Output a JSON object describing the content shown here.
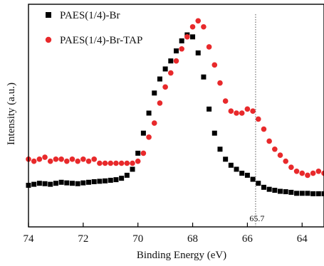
{
  "chart_data": {
    "type": "scatter",
    "title": "",
    "xlabel": "Binding Energy (eV)",
    "ylabel": "Intensity (a.u.)",
    "xlim": [
      74,
      63.2
    ],
    "x_reversed": true,
    "ylim": [
      0,
      1
    ],
    "x_ticks": [
      74,
      72,
      70,
      68,
      66,
      64
    ],
    "x_tick_labels": [
      "74",
      "72",
      "70",
      "68",
      "66",
      "64"
    ],
    "y_ticks_shown": false,
    "grid": false,
    "legend_position": "top-left",
    "annotation": {
      "x": 65.7,
      "label": "65.7",
      "style": "dotted-vertical-line"
    },
    "series": [
      {
        "name": "PAES(1/4)-Br",
        "marker": "square",
        "color": "#000000",
        "x": [
          74.0,
          73.8,
          73.6,
          73.4,
          73.2,
          73.0,
          72.8,
          72.6,
          72.4,
          72.2,
          72.0,
          71.8,
          71.6,
          71.4,
          71.2,
          71.0,
          70.8,
          70.6,
          70.4,
          70.2,
          70.0,
          69.8,
          69.6,
          69.4,
          69.2,
          69.0,
          68.8,
          68.6,
          68.4,
          68.2,
          68.0,
          67.8,
          67.6,
          67.4,
          67.2,
          67.0,
          66.8,
          66.6,
          66.4,
          66.2,
          66.0,
          65.8,
          65.6,
          65.4,
          65.2,
          65.0,
          64.8,
          64.6,
          64.4,
          64.2,
          64.0,
          63.8,
          63.6,
          63.4,
          63.2
        ],
        "y": [
          0.14,
          0.145,
          0.15,
          0.148,
          0.145,
          0.15,
          0.155,
          0.152,
          0.15,
          0.148,
          0.152,
          0.155,
          0.158,
          0.16,
          0.162,
          0.165,
          0.168,
          0.175,
          0.19,
          0.22,
          0.3,
          0.4,
          0.5,
          0.6,
          0.67,
          0.72,
          0.76,
          0.81,
          0.86,
          0.89,
          0.88,
          0.8,
          0.68,
          0.52,
          0.4,
          0.32,
          0.27,
          0.24,
          0.22,
          0.2,
          0.19,
          0.17,
          0.15,
          0.13,
          0.12,
          0.115,
          0.11,
          0.108,
          0.105,
          0.1,
          0.1,
          0.1,
          0.098,
          0.098,
          0.098
        ]
      },
      {
        "name": "PAES(1/4)-Br-TAP",
        "marker": "circle",
        "color": "#e8292b",
        "x": [
          74.0,
          73.8,
          73.6,
          73.4,
          73.2,
          73.0,
          72.8,
          72.6,
          72.4,
          72.2,
          72.0,
          71.8,
          71.6,
          71.4,
          71.2,
          71.0,
          70.8,
          70.6,
          70.4,
          70.2,
          70.0,
          69.8,
          69.6,
          69.4,
          69.2,
          69.0,
          68.8,
          68.6,
          68.4,
          68.2,
          68.0,
          67.8,
          67.6,
          67.4,
          67.2,
          67.0,
          66.8,
          66.6,
          66.4,
          66.2,
          66.0,
          65.8,
          65.6,
          65.4,
          65.2,
          65.0,
          64.8,
          64.6,
          64.4,
          64.2,
          64.0,
          63.8,
          63.6,
          63.4,
          63.2
        ],
        "y": [
          0.27,
          0.26,
          0.27,
          0.28,
          0.26,
          0.27,
          0.27,
          0.26,
          0.27,
          0.26,
          0.27,
          0.26,
          0.27,
          0.25,
          0.25,
          0.25,
          0.25,
          0.25,
          0.25,
          0.25,
          0.26,
          0.3,
          0.38,
          0.45,
          0.55,
          0.63,
          0.7,
          0.76,
          0.82,
          0.88,
          0.93,
          0.96,
          0.93,
          0.83,
          0.74,
          0.65,
          0.56,
          0.51,
          0.5,
          0.5,
          0.52,
          0.51,
          0.47,
          0.42,
          0.36,
          0.32,
          0.29,
          0.26,
          0.23,
          0.21,
          0.2,
          0.19,
          0.2,
          0.21,
          0.2
        ]
      }
    ]
  }
}
